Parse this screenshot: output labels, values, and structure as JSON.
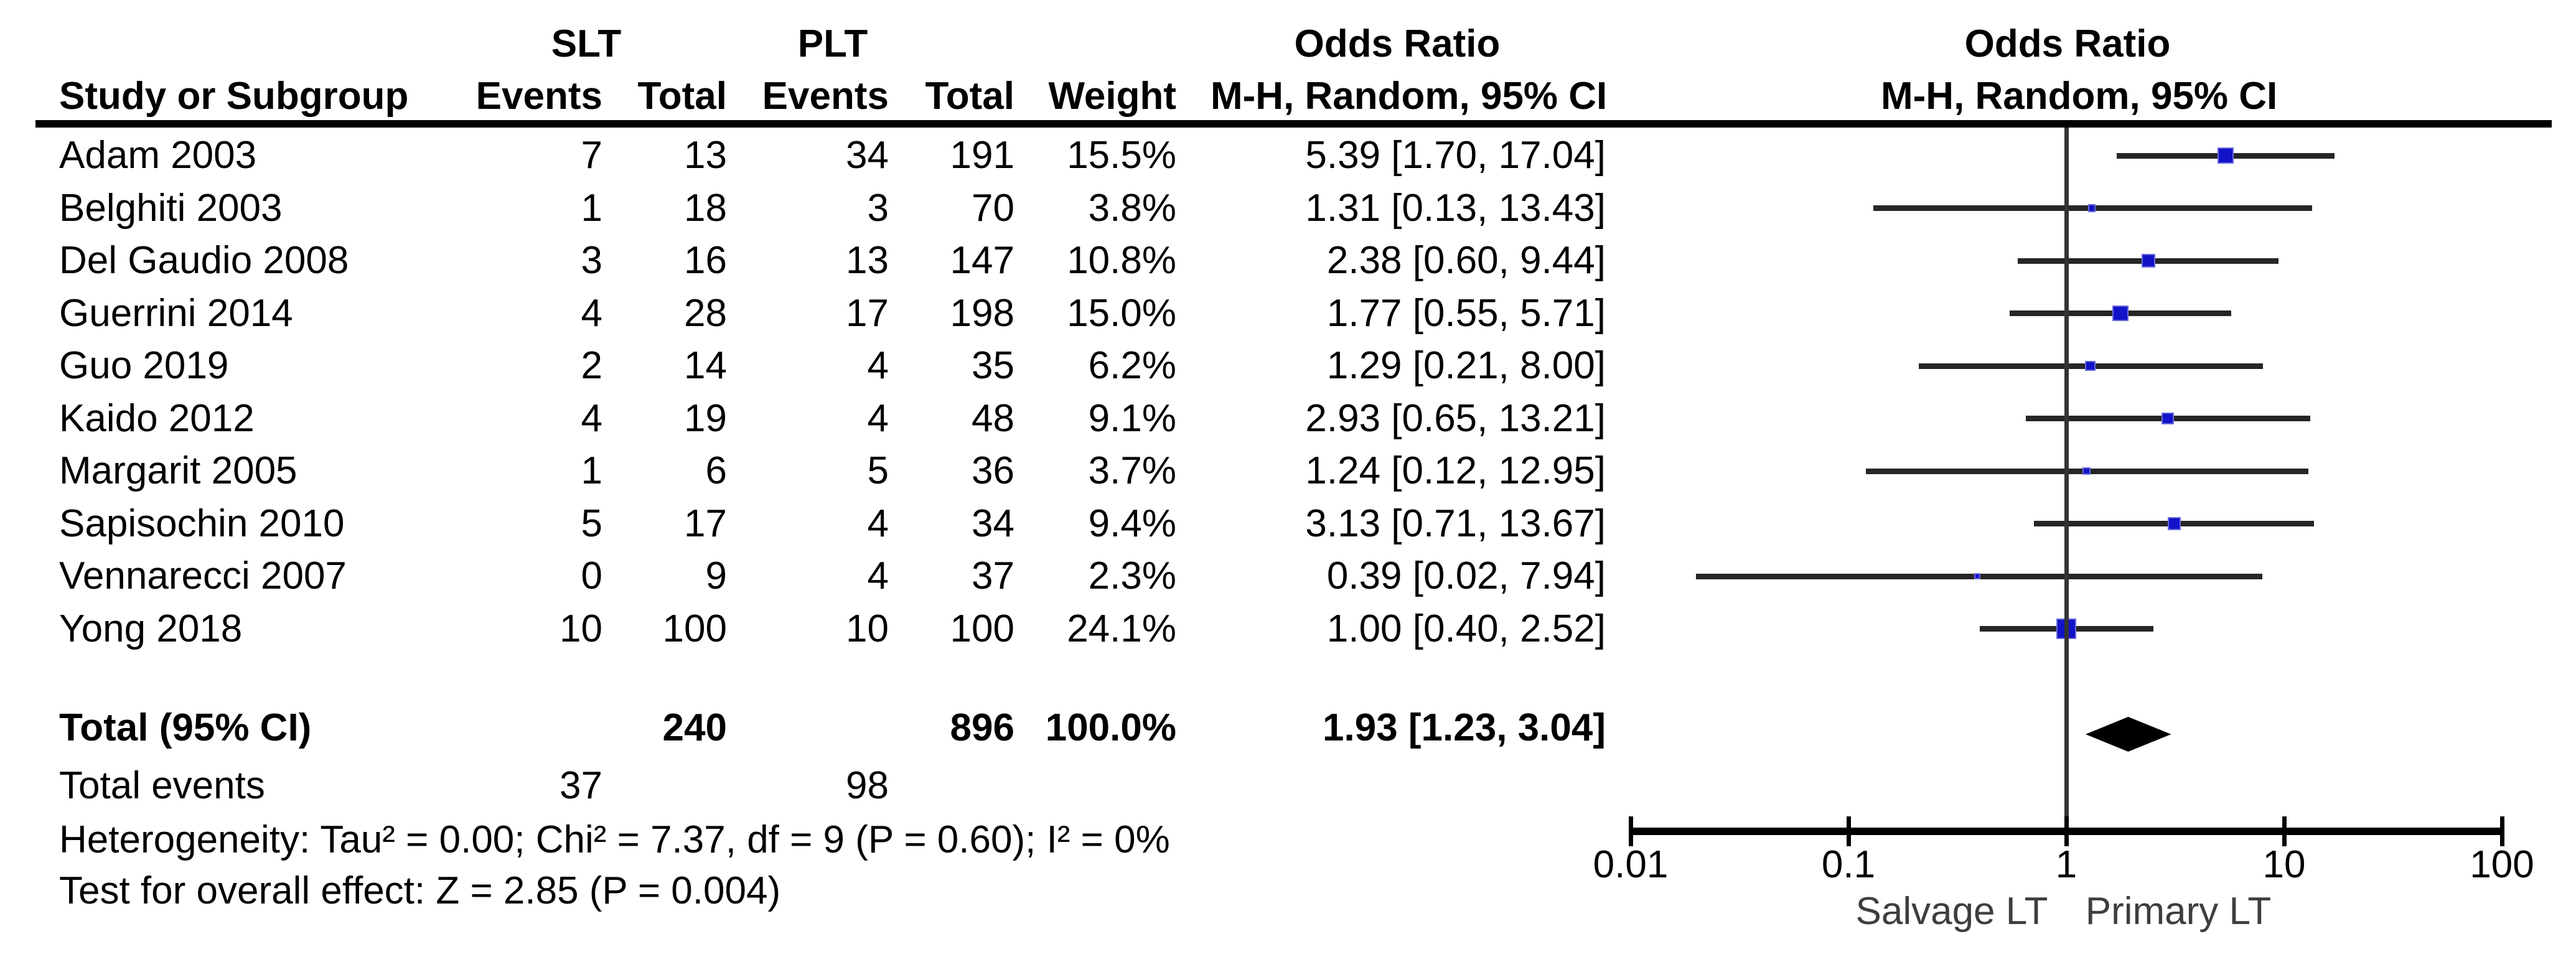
{
  "figure": {
    "kind": "forest-plot",
    "comparison_left": "SLT",
    "comparison_right": "PLT"
  },
  "colors": {
    "marker_fill": "#1212c8",
    "marker_border": "#6a6ade",
    "ci_line": "#262626",
    "diamond": "#000000",
    "axis": "#000000",
    "text": "#000000",
    "axis_label_gray": "#3e3e3e"
  },
  "header": {
    "group1": "SLT",
    "group2": "PLT",
    "col_study": "Study or Subgroup",
    "col_events1": "Events",
    "col_total1": "Total",
    "col_events2": "Events",
    "col_total2": "Total",
    "col_weight": "Weight",
    "or_table_line1": "Odds Ratio",
    "or_table_line2": "M-H, Random, 95% CI",
    "or_plot_line1": "Odds Ratio",
    "or_plot_line2": "M-H, Random, 95% CI"
  },
  "rows": [
    {
      "study": "Adam 2003",
      "slt_events": "7",
      "slt_total": "13",
      "plt_events": "34",
      "plt_total": "191",
      "weight": "15.5%",
      "or_text": "5.39 [1.70, 17.04]",
      "or": 5.39,
      "ci_low": 1.7,
      "ci_high": 17.04,
      "weight_pct": 15.5
    },
    {
      "study": "Belghiti 2003",
      "slt_events": "1",
      "slt_total": "18",
      "plt_events": "3",
      "plt_total": "70",
      "weight": "3.8%",
      "or_text": "1.31 [0.13, 13.43]",
      "or": 1.31,
      "ci_low": 0.13,
      "ci_high": 13.43,
      "weight_pct": 3.8
    },
    {
      "study": "Del Gaudio 2008",
      "slt_events": "3",
      "slt_total": "16",
      "plt_events": "13",
      "plt_total": "147",
      "weight": "10.8%",
      "or_text": "2.38 [0.60, 9.44]",
      "or": 2.38,
      "ci_low": 0.6,
      "ci_high": 9.44,
      "weight_pct": 10.8
    },
    {
      "study": "Guerrini 2014",
      "slt_events": "4",
      "slt_total": "28",
      "plt_events": "17",
      "plt_total": "198",
      "weight": "15.0%",
      "or_text": "1.77 [0.55, 5.71]",
      "or": 1.77,
      "ci_low": 0.55,
      "ci_high": 5.71,
      "weight_pct": 15.0
    },
    {
      "study": "Guo 2019",
      "slt_events": "2",
      "slt_total": "14",
      "plt_events": "4",
      "plt_total": "35",
      "weight": "6.2%",
      "or_text": "1.29 [0.21, 8.00]",
      "or": 1.29,
      "ci_low": 0.21,
      "ci_high": 8.0,
      "weight_pct": 6.2
    },
    {
      "study": "Kaido 2012",
      "slt_events": "4",
      "slt_total": "19",
      "plt_events": "4",
      "plt_total": "48",
      "weight": "9.1%",
      "or_text": "2.93 [0.65, 13.21]",
      "or": 2.93,
      "ci_low": 0.65,
      "ci_high": 13.21,
      "weight_pct": 9.1
    },
    {
      "study": "Margarit 2005",
      "slt_events": "1",
      "slt_total": "6",
      "plt_events": "5",
      "plt_total": "36",
      "weight": "3.7%",
      "or_text": "1.24 [0.12, 12.95]",
      "or": 1.24,
      "ci_low": 0.12,
      "ci_high": 12.95,
      "weight_pct": 3.7
    },
    {
      "study": "Sapisochin 2010",
      "slt_events": "5",
      "slt_total": "17",
      "plt_events": "4",
      "plt_total": "34",
      "weight": "9.4%",
      "or_text": "3.13 [0.71, 13.67]",
      "or": 3.13,
      "ci_low": 0.71,
      "ci_high": 13.67,
      "weight_pct": 9.4
    },
    {
      "study": "Vennarecci 2007",
      "slt_events": "0",
      "slt_total": "9",
      "plt_events": "4",
      "plt_total": "37",
      "weight": "2.3%",
      "or_text": "0.39 [0.02, 7.94]",
      "or": 0.39,
      "ci_low": 0.02,
      "ci_high": 7.94,
      "weight_pct": 2.3
    },
    {
      "study": "Yong 2018",
      "slt_events": "10",
      "slt_total": "100",
      "plt_events": "10",
      "plt_total": "100",
      "weight": "24.1%",
      "or_text": "1.00 [0.40, 2.52]",
      "or": 1.0,
      "ci_low": 0.4,
      "ci_high": 2.52,
      "weight_pct": 24.1
    }
  ],
  "total": {
    "label": "Total (95% CI)",
    "slt_total": "240",
    "plt_total": "896",
    "weight": "100.0%",
    "or_text": "1.93 [1.23, 3.04]",
    "or": 1.93,
    "ci_low": 1.23,
    "ci_high": 3.04
  },
  "total_events": {
    "label": "Total events",
    "slt": "37",
    "plt": "98"
  },
  "heterogeneity": "Heterogeneity: Tau² = 0.00; Chi² = 7.37, df = 9 (P = 0.60); I² = 0%",
  "overall_effect": "Test for overall effect: Z = 2.85 (P = 0.004)",
  "axis": {
    "ticks": [
      "0.01",
      "0.1",
      "1",
      "10",
      "100"
    ],
    "tick_values": [
      0.01,
      0.1,
      1,
      10,
      100
    ],
    "label_left": "Salvage LT",
    "label_right": "Primary LT"
  },
  "chart_data": {
    "type": "scatter",
    "subtype": "forest-plot",
    "title": "Odds Ratio M-H, Random, 95% CI",
    "x_scale": "log10",
    "xlim": [
      0.01,
      100
    ],
    "x_ticks": [
      0.01,
      0.1,
      1,
      10,
      100
    ],
    "null_line": 1,
    "xlabel_left": "Salvage LT",
    "xlabel_right": "Primary LT",
    "series": [
      {
        "name": "Adam 2003",
        "or": 5.39,
        "ci": [
          1.7,
          17.04
        ],
        "weight_pct": 15.5,
        "slt_events": 7,
        "slt_total": 13,
        "plt_events": 34,
        "plt_total": 191
      },
      {
        "name": "Belghiti 2003",
        "or": 1.31,
        "ci": [
          0.13,
          13.43
        ],
        "weight_pct": 3.8,
        "slt_events": 1,
        "slt_total": 18,
        "plt_events": 3,
        "plt_total": 70
      },
      {
        "name": "Del Gaudio 2008",
        "or": 2.38,
        "ci": [
          0.6,
          9.44
        ],
        "weight_pct": 10.8,
        "slt_events": 3,
        "slt_total": 16,
        "plt_events": 13,
        "plt_total": 147
      },
      {
        "name": "Guerrini 2014",
        "or": 1.77,
        "ci": [
          0.55,
          5.71
        ],
        "weight_pct": 15.0,
        "slt_events": 4,
        "slt_total": 28,
        "plt_events": 17,
        "plt_total": 198
      },
      {
        "name": "Guo 2019",
        "or": 1.29,
        "ci": [
          0.21,
          8.0
        ],
        "weight_pct": 6.2,
        "slt_events": 2,
        "slt_total": 14,
        "plt_events": 4,
        "plt_total": 35
      },
      {
        "name": "Kaido 2012",
        "or": 2.93,
        "ci": [
          0.65,
          13.21
        ],
        "weight_pct": 9.1,
        "slt_events": 4,
        "slt_total": 19,
        "plt_events": 4,
        "plt_total": 48
      },
      {
        "name": "Margarit 2005",
        "or": 1.24,
        "ci": [
          0.12,
          12.95
        ],
        "weight_pct": 3.7,
        "slt_events": 1,
        "slt_total": 6,
        "plt_events": 5,
        "plt_total": 36
      },
      {
        "name": "Sapisochin 2010",
        "or": 3.13,
        "ci": [
          0.71,
          13.67
        ],
        "weight_pct": 9.4,
        "slt_events": 5,
        "slt_total": 17,
        "plt_events": 4,
        "plt_total": 34
      },
      {
        "name": "Vennarecci 2007",
        "or": 0.39,
        "ci": [
          0.02,
          7.94
        ],
        "weight_pct": 2.3,
        "slt_events": 0,
        "slt_total": 9,
        "plt_events": 4,
        "plt_total": 37
      },
      {
        "name": "Yong 2018",
        "or": 1.0,
        "ci": [
          0.4,
          2.52
        ],
        "weight_pct": 24.1,
        "slt_events": 10,
        "slt_total": 100,
        "plt_events": 10,
        "plt_total": 100
      }
    ],
    "summary": {
      "name": "Total (95% CI)",
      "or": 1.93,
      "ci": [
        1.23,
        3.04
      ],
      "weight_pct": 100.0,
      "slt_total": 240,
      "plt_total": 896
    },
    "stats": {
      "tau2": 0.0,
      "chi2": 7.37,
      "df": 9,
      "p_heterogeneity": 0.6,
      "i2_pct": 0,
      "z": 2.85,
      "p_overall": 0.004,
      "total_events_slt": 37,
      "total_events_plt": 98
    }
  }
}
